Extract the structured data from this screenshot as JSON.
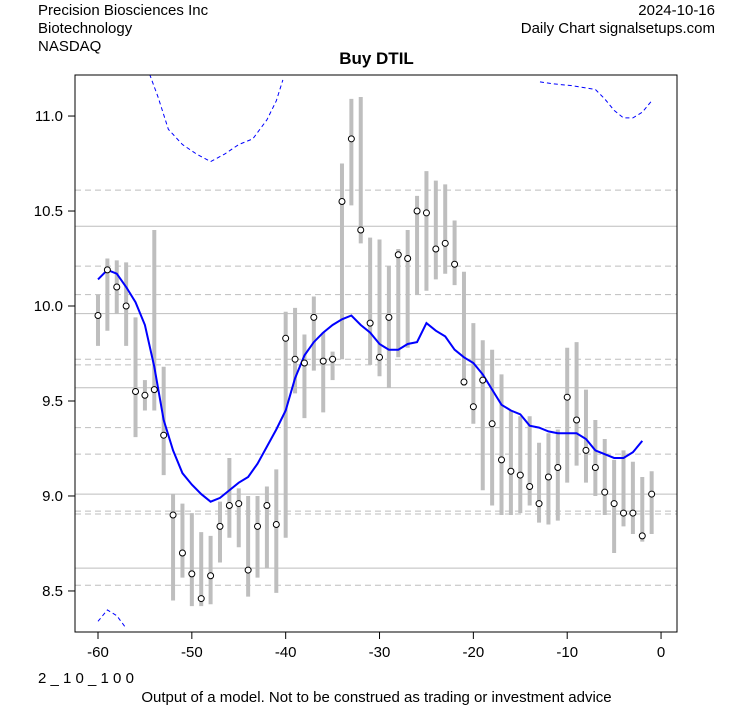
{
  "header": {
    "company": "Precision Biosciences Inc",
    "sector": "Biotechnology",
    "exchange": "NASDAQ",
    "date": "2024-10-16",
    "source": "Daily Chart signalsetups.com"
  },
  "footer": {
    "code": "2 _ 1 0 _ 1 0 0",
    "disclaimer": "Output of a model. Not to be construed as trading or investment advice"
  },
  "chart_data": {
    "type": "line",
    "title": "Buy DTIL",
    "xlabel": "",
    "ylabel": "",
    "xlim": [
      -62.45,
      1.7
    ],
    "ylim": [
      8.284,
      11.216
    ],
    "x_ticks": [
      -60,
      -50,
      -40,
      -30,
      -20,
      -10,
      0
    ],
    "y_ticks": [
      8.5,
      9.0,
      9.5,
      10.0,
      10.5,
      11.0
    ],
    "colors": {
      "range_bars": "#bebebe",
      "moving_average": "#0000ff",
      "bands": "#0000ff",
      "grid": "#bebebe"
    },
    "solid_levels": [
      10.42,
      9.96,
      9.57,
      9.01,
      8.62
    ],
    "dashed_levels": [
      10.61,
      10.21,
      10.06,
      9.72,
      9.69,
      9.36,
      9.22,
      8.92,
      8.905,
      8.53
    ],
    "x": [
      -60,
      -59,
      -58,
      -57,
      -56,
      -55,
      -54,
      -53,
      -52,
      -51,
      -50,
      -49,
      -48,
      -47,
      -46,
      -45,
      -44,
      -43,
      -42,
      -41,
      -40,
      -39,
      -38,
      -37,
      -36,
      -35,
      -34,
      -33,
      -32,
      -31,
      -30,
      -29,
      -28,
      -27,
      -26,
      -25,
      -24,
      -23,
      -22,
      -21,
      -20,
      -19,
      -18,
      -17,
      -16,
      -15,
      -14,
      -13,
      -12,
      -11,
      -10,
      -9,
      -8,
      -7,
      -6,
      -5,
      -4,
      -3,
      -2,
      -1
    ],
    "close": [
      9.95,
      10.19,
      10.1,
      10.0,
      9.55,
      9.53,
      9.56,
      9.32,
      8.9,
      8.7,
      8.59,
      8.46,
      8.58,
      8.84,
      8.95,
      8.96,
      8.61,
      8.84,
      8.95,
      8.85,
      9.83,
      9.72,
      9.7,
      9.94,
      9.71,
      9.72,
      10.55,
      10.88,
      10.4,
      9.91,
      9.73,
      9.94,
      10.27,
      10.25,
      10.5,
      10.49,
      10.3,
      10.33,
      10.22,
      9.6,
      9.47,
      9.61,
      9.38,
      9.19,
      9.13,
      9.11,
      9.05,
      8.96,
      9.1,
      9.15,
      9.52,
      9.4,
      9.24,
      9.15,
      9.02,
      8.96,
      8.91,
      8.91,
      8.79,
      9.01
    ],
    "low": [
      9.79,
      9.87,
      9.96,
      9.79,
      9.31,
      9.45,
      9.45,
      9.11,
      8.45,
      8.57,
      8.42,
      8.42,
      8.43,
      8.65,
      8.78,
      8.73,
      8.47,
      8.57,
      8.62,
      8.49,
      8.78,
      9.54,
      9.41,
      9.66,
      9.44,
      9.61,
      9.72,
      10.53,
      10.33,
      9.69,
      9.63,
      9.57,
      9.73,
      9.78,
      10.06,
      10.08,
      10.14,
      10.17,
      10.11,
      9.58,
      9.38,
      9.03,
      8.95,
      8.9,
      8.9,
      8.91,
      8.95,
      8.86,
      8.85,
      8.87,
      9.07,
      9.16,
      9.07,
      9.0,
      8.9,
      8.7,
      8.84,
      8.8,
      8.76,
      8.8
    ],
    "high": [
      10.06,
      10.25,
      10.24,
      10.23,
      9.94,
      9.61,
      10.4,
      9.68,
      9.01,
      8.96,
      8.91,
      8.81,
      8.79,
      8.97,
      9.2,
      9.04,
      9.0,
      9.0,
      9.05,
      9.14,
      9.97,
      9.99,
      9.85,
      10.05,
      9.86,
      9.76,
      10.75,
      11.09,
      11.1,
      10.36,
      10.35,
      10.21,
      10.3,
      10.4,
      10.58,
      10.71,
      10.66,
      10.64,
      10.45,
      10.18,
      9.91,
      9.82,
      9.77,
      9.64,
      9.45,
      9.42,
      9.42,
      9.28,
      9.33,
      9.35,
      9.78,
      9.81,
      9.56,
      9.4,
      9.3,
      9.19,
      9.24,
      9.18,
      9.1,
      9.13
    ],
    "moving_average": [
      10.14,
      10.19,
      10.17,
      10.1,
      10.02,
      9.9,
      9.68,
      9.4,
      9.24,
      9.12,
      9.06,
      9.01,
      8.97,
      8.99,
      9.03,
      9.07,
      9.1,
      9.17,
      9.26,
      9.35,
      9.45,
      9.62,
      9.74,
      9.81,
      9.86,
      9.9,
      9.93,
      9.95,
      9.9,
      9.86,
      9.8,
      9.77,
      9.77,
      9.8,
      9.81,
      9.91,
      9.87,
      9.84,
      9.77,
      9.73,
      9.7,
      9.64,
      9.56,
      9.48,
      9.45,
      9.43,
      9.37,
      9.36,
      9.34,
      9.33,
      9.33,
      9.33,
      9.3,
      9.24,
      9.22,
      9.2,
      9.2,
      9.23,
      9.29,
      null
    ],
    "upper_band_segments": [
      {
        "x": [
          -54.5,
          -53.6,
          -52.5,
          -51,
          -49.5,
          -48,
          -46.5,
          -45,
          -43.5,
          -42,
          -41,
          -40.3
        ],
        "y": [
          11.22,
          11.1,
          10.93,
          10.85,
          10.8,
          10.76,
          10.8,
          10.85,
          10.88,
          10.98,
          11.08,
          11.19
        ]
      },
      {
        "x": [
          -12.9,
          -11.6,
          -9.5,
          -7,
          -6,
          -5,
          -4,
          -3,
          -2,
          -1
        ],
        "y": [
          11.18,
          11.17,
          11.16,
          11.14,
          11.09,
          11.03,
          10.99,
          10.99,
          11.02,
          11.08
        ]
      }
    ],
    "lower_band_segments": [
      {
        "x": [
          -60,
          -59,
          -58,
          -57.1
        ],
        "y": [
          8.34,
          8.4,
          8.37,
          8.31
        ]
      }
    ]
  }
}
